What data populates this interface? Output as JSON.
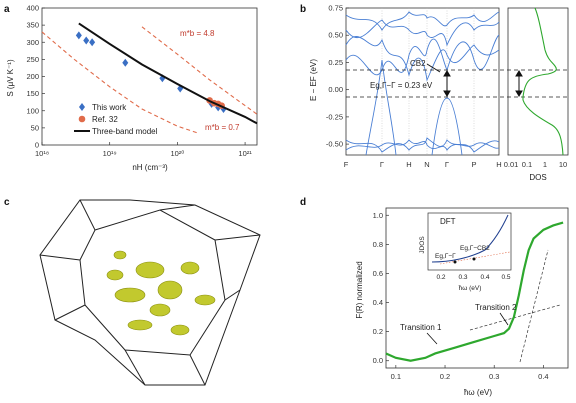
{
  "panels": {
    "a": {
      "label": "a",
      "ylabel": "S (μV K⁻¹)",
      "xlabel": "nH (cm⁻³)",
      "yticks": [
        "0",
        "50",
        "100",
        "150",
        "200",
        "250",
        "300",
        "350",
        "400"
      ],
      "xticks": [
        "10¹⁸",
        "10¹⁹",
        "10²⁰",
        "10²¹"
      ],
      "legend": [
        "This work",
        "Ref. 32",
        "Three-band model"
      ],
      "annotations": [
        "m*b = 4.8",
        "m*b = 0.7"
      ]
    },
    "b": {
      "label": "b",
      "ylabel": "E − EF (eV)",
      "yticks": [
        "0.75",
        "0.50",
        "0.25",
        "0.00",
        "-0.25",
        "-0.50"
      ],
      "kpoints": [
        "F",
        "Γ",
        "H",
        "N",
        "Γ",
        "P",
        "H"
      ],
      "dos_ticks": [
        "0.01",
        "0.1",
        "1",
        "10"
      ],
      "dos_label": "DOS",
      "annotations": [
        "CB2",
        "Eg,Γ−Γ = 0.23 eV"
      ]
    },
    "c": {
      "label": "c"
    },
    "d": {
      "label": "d",
      "ylabel": "F(R) normalized",
      "xlabel": "ħω (eV)",
      "yticks": [
        "0.0",
        "0.2",
        "0.4",
        "0.6",
        "0.8",
        "1.0"
      ],
      "xticks": [
        "0.1",
        "0.2",
        "0.3",
        "0.4"
      ],
      "annotations": [
        "Transition 1",
        "Transition 2"
      ],
      "inset": {
        "title": "DFT",
        "ylabel": "JDOS",
        "xlabel": "ħω (eV)",
        "xticks": [
          "0.2",
          "0.3",
          "0.4",
          "0.5"
        ],
        "annotations": [
          "Eg,Γ−Γ",
          "Eg,Γ−CB2"
        ]
      }
    }
  },
  "chart_data": [
    {
      "type": "scatter",
      "panel": "a",
      "xscale": "log",
      "xlim": [
        1e+18,
        1.5e+21
      ],
      "ylim": [
        0,
        400
      ],
      "series": [
        {
          "name": "This work",
          "marker": "diamond",
          "color": "#3a6fc4",
          "x": [
            3.5e+18,
            4.5e+18,
            5.5e+18,
            1.7e+19,
            6e+19,
            1.1e+20,
            3.2e+20,
            4e+20,
            4.8e+20
          ],
          "y": [
            320,
            305,
            300,
            240,
            195,
            165,
            120,
            110,
            105
          ]
        },
        {
          "name": "Ref. 32",
          "marker": "circle",
          "color": "#e06b4a",
          "x": [
            3e+20,
            3.5e+20,
            4e+20,
            4.5e+20
          ],
          "y": [
            130,
            122,
            120,
            115
          ]
        },
        {
          "name": "Three-band model",
          "marker": "line",
          "color": "#111111",
          "x": [
            3.5e+18,
            1e+19,
            3e+19,
            1e+20,
            3e+20,
            1e+21,
            1.5e+21
          ],
          "y": [
            355,
            295,
            235,
            178,
            128,
            82,
            63
          ]
        }
      ],
      "curves": [
        {
          "label": "m*b = 4.8",
          "color": "#e06b4a",
          "x": [
            3e+19,
            1e+20,
            3e+20,
            1e+21,
            1.5e+21
          ],
          "y": [
            345,
            265,
            190,
            115,
            90
          ]
        },
        {
          "label": "m*b = 0.7",
          "color": "#e06b4a",
          "x": [
            1e+18,
            3e+18,
            1e+19,
            3e+19,
            1e+20,
            2e+20
          ],
          "y": [
            330,
            250,
            170,
            105,
            55,
            35
          ]
        }
      ]
    },
    {
      "type": "line",
      "panel": "d",
      "xlim": [
        0.08,
        0.45
      ],
      "ylim": [
        -0.05,
        1.05
      ],
      "series": [
        {
          "name": "",
          "color": "#2ea82e",
          "x": [
            0.08,
            0.1,
            0.13,
            0.16,
            0.18,
            0.22,
            0.26,
            0.3,
            0.32,
            0.33,
            0.34,
            0.35,
            0.36,
            0.37,
            0.38,
            0.4,
            0.42,
            0.44
          ],
          "y": [
            0.05,
            0.02,
            0.0,
            0.02,
            0.05,
            0.09,
            0.13,
            0.17,
            0.19,
            0.22,
            0.3,
            0.45,
            0.62,
            0.76,
            0.84,
            0.9,
            0.93,
            0.95
          ]
        }
      ]
    }
  ]
}
